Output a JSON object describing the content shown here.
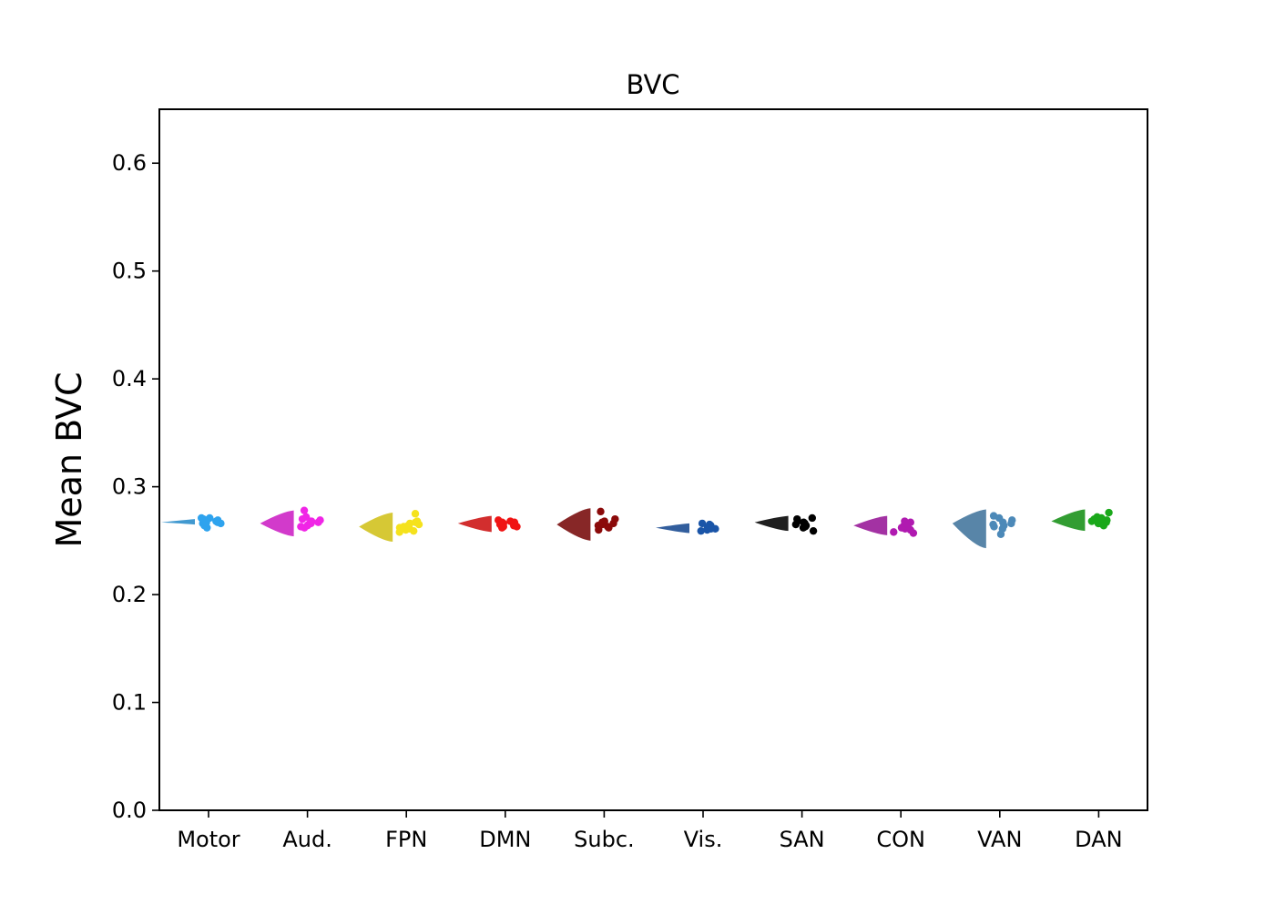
{
  "chart_data": {
    "type": "scatter",
    "title": "BVC",
    "xlabel": "",
    "ylabel": "Mean BVC",
    "ylim": [
      0.0,
      0.65
    ],
    "yticks": [
      "0.0",
      "0.1",
      "0.2",
      "0.3",
      "0.4",
      "0.5",
      "0.6"
    ],
    "grid": false,
    "categories": [
      "Motor",
      "Aud.",
      "FPN",
      "DMN",
      "Subc.",
      "Vis.",
      "SAN",
      "CON",
      "VAN",
      "DAN"
    ],
    "series": [
      {
        "category": "Motor",
        "color": "#2ea3ee",
        "half_violin": {
          "center": 0.267,
          "min": 0.265,
          "max": 0.27
        },
        "points": [
          0.268,
          0.266,
          0.271,
          0.269,
          0.264,
          0.267,
          0.27,
          0.266,
          0.262,
          0.268,
          0.271,
          0.267
        ]
      },
      {
        "category": "Aud.",
        "color": "#f025e6",
        "half_violin": {
          "center": 0.266,
          "min": 0.254,
          "max": 0.278
        },
        "points": [
          0.268,
          0.264,
          0.272,
          0.266,
          0.27,
          0.263,
          0.267,
          0.278,
          0.265,
          0.269,
          0.262,
          0.268
        ]
      },
      {
        "category": "FPN",
        "color": "#f5e21d",
        "half_violin": {
          "center": 0.263,
          "min": 0.249,
          "max": 0.276
        },
        "points": [
          0.264,
          0.26,
          0.268,
          0.262,
          0.275,
          0.258,
          0.266,
          0.263,
          0.261,
          0.267,
          0.259,
          0.265,
          0.262
        ]
      },
      {
        "category": "DMN",
        "color": "#f01414",
        "half_violin": {
          "center": 0.266,
          "min": 0.258,
          "max": 0.273
        },
        "points": [
          0.266,
          0.263,
          0.268,
          0.265,
          0.262,
          0.267,
          0.264,
          0.269,
          0.265,
          0.263,
          0.266,
          0.267
        ]
      },
      {
        "category": "Subc.",
        "color": "#8b0a0a",
        "half_violin": {
          "center": 0.265,
          "min": 0.25,
          "max": 0.28
        },
        "points": [
          0.266,
          0.263,
          0.27,
          0.265,
          0.277,
          0.26,
          0.268,
          0.264,
          0.262,
          0.267
        ]
      },
      {
        "category": "Vis.",
        "color": "#1a55a8",
        "half_violin": {
          "center": 0.262,
          "min": 0.257,
          "max": 0.266
        },
        "points": [
          0.262,
          0.26,
          0.265,
          0.261,
          0.263,
          0.259,
          0.264,
          0.262,
          0.266,
          0.261
        ]
      },
      {
        "category": "SAN",
        "color": "#000000",
        "half_violin": {
          "center": 0.267,
          "min": 0.259,
          "max": 0.273
        },
        "points": [
          0.266,
          0.264,
          0.27,
          0.262,
          0.259,
          0.268,
          0.265,
          0.271,
          0.263,
          0.267
        ]
      },
      {
        "category": "CON",
        "color": "#b01ab0",
        "half_violin": {
          "center": 0.264,
          "min": 0.255,
          "max": 0.273
        },
        "points": [
          0.264,
          0.261,
          0.267,
          0.258,
          0.263,
          0.266,
          0.26,
          0.268,
          0.262,
          0.265,
          0.257
        ]
      },
      {
        "category": "VAN",
        "color": "#4c89b8",
        "half_violin": {
          "center": 0.266,
          "min": 0.243,
          "max": 0.279
        },
        "points": [
          0.267,
          0.264,
          0.273,
          0.261,
          0.269,
          0.256,
          0.266,
          0.263,
          0.271,
          0.265
        ]
      },
      {
        "category": "DAN",
        "color": "#1aa81a",
        "half_violin": {
          "center": 0.268,
          "min": 0.259,
          "max": 0.279
        },
        "points": [
          0.268,
          0.266,
          0.272,
          0.265,
          0.276,
          0.267,
          0.27,
          0.264,
          0.269,
          0.266,
          0.271
        ]
      }
    ]
  }
}
